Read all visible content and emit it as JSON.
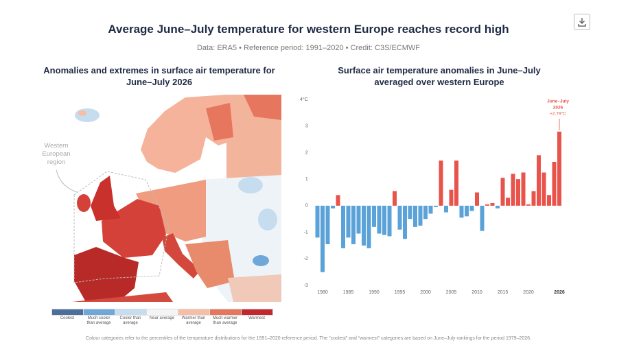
{
  "header": {
    "title": "Average June–July temperature for western Europe reaches record high",
    "subtitle": "Data: ERA5 • Reference period: 1991–2020 • Credit: C3S/ECMWF"
  },
  "map_panel": {
    "title": "Anomalies and extremes in surface air temperature for June–July 2026",
    "region_label": "Western European region",
    "legend": [
      {
        "label": "Coolest",
        "color": "#4b6e9b"
      },
      {
        "label": "Much cooler than average",
        "color": "#6ea7d8"
      },
      {
        "label": "Cooler than average",
        "color": "#c6dcef"
      },
      {
        "label": "Near average",
        "color": "#f4f4f4"
      },
      {
        "label": "Warmer than average",
        "color": "#f6bea6"
      },
      {
        "label": "Much warmer than average",
        "color": "#e6765d"
      },
      {
        "label": "Warmest",
        "color": "#c0282b"
      }
    ]
  },
  "chart_data": {
    "type": "bar",
    "title": "Surface air temperature anomalies in June–July averaged over western Europe",
    "x": [
      1979,
      1980,
      1981,
      1982,
      1983,
      1984,
      1985,
      1986,
      1987,
      1988,
      1989,
      1990,
      1991,
      1992,
      1993,
      1994,
      1995,
      1996,
      1997,
      1998,
      1999,
      2000,
      2001,
      2002,
      2003,
      2004,
      2005,
      2006,
      2007,
      2008,
      2009,
      2010,
      2011,
      2012,
      2013,
      2014,
      2015,
      2016,
      2017,
      2018,
      2019,
      2020,
      2021,
      2022,
      2023,
      2024,
      2025,
      2026
    ],
    "values": [
      -1.2,
      -2.5,
      -1.45,
      -0.1,
      0.4,
      -1.6,
      -1.2,
      -1.45,
      -1.05,
      -1.5,
      -1.6,
      -0.8,
      -1.05,
      -1.1,
      -1.15,
      0.55,
      -0.9,
      -1.25,
      -0.5,
      -0.8,
      -0.75,
      -0.5,
      -0.3,
      -0.05,
      1.7,
      -0.25,
      0.6,
      1.7,
      -0.45,
      -0.4,
      -0.2,
      0.5,
      -0.95,
      0.05,
      0.1,
      -0.1,
      1.05,
      0.3,
      1.2,
      1.0,
      1.25,
      0.05,
      0.55,
      1.9,
      1.25,
      0.4,
      1.65,
      2.79
    ],
    "color": "#e8544b",
    "negative_color": "#5aa2d8",
    "xlim": [
      1978.5,
      2027
    ],
    "xticks": [
      1980,
      1985,
      1990,
      1995,
      2000,
      2005,
      2010,
      2015,
      2020,
      2026
    ],
    "ylim": [
      -3,
      4
    ],
    "yticks": [
      -3,
      -2,
      -1,
      0,
      1,
      2,
      3,
      {
        "value": 4,
        "label": "4°C"
      }
    ],
    "grid": false,
    "annotation": {
      "lines": [
        "June–July",
        "2026",
        "+2.79°C"
      ],
      "x": 2026
    }
  },
  "footnote": "Colour categories refer to the percentiles of the temperature distributions for the 1991–2020 reference period. The “coolest” and “warmest” categories are based on June–July rankings for the period 1979–2026."
}
